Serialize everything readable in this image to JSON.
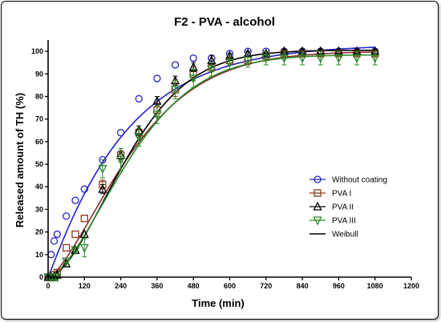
{
  "chart_data": {
    "type": "scatter",
    "title": "F2 - PVA - alcohol",
    "xlabel": "Time (min)",
    "ylabel": "Released amount of TH (%)",
    "xlim": [
      0,
      1200
    ],
    "ylim": [
      0,
      105
    ],
    "xticks": [
      0,
      120,
      240,
      360,
      480,
      600,
      720,
      840,
      960,
      1080,
      1200
    ],
    "yticks": [
      0,
      10,
      20,
      30,
      40,
      50,
      60,
      70,
      80,
      90,
      100
    ],
    "grid": false,
    "legend_position": "right",
    "series": [
      {
        "name": "Without coating",
        "marker": "circle",
        "color": "#2323c8",
        "x": [
          0,
          10,
          20,
          30,
          60,
          90,
          120,
          180,
          240,
          300,
          360,
          420,
          480,
          540,
          600,
          660,
          720,
          780,
          840,
          900,
          960,
          1020,
          1080
        ],
        "y": [
          0,
          10,
          16,
          19,
          27,
          34,
          39,
          52,
          64,
          79,
          88,
          94,
          97,
          97,
          99,
          100,
          100,
          100,
          100,
          100,
          100,
          100,
          100
        ],
        "err": [
          0,
          0,
          0,
          0,
          0,
          0,
          0,
          0,
          0,
          0,
          0,
          0,
          0,
          0,
          0,
          0,
          0,
          0,
          0,
          0,
          0,
          0,
          0
        ]
      },
      {
        "name": "PVA I",
        "marker": "square",
        "color": "#8b3a1a",
        "x": [
          0,
          10,
          20,
          30,
          60,
          90,
          120,
          180,
          240,
          300,
          360,
          420,
          480,
          540,
          600,
          660,
          720,
          780,
          840,
          900,
          960,
          1020,
          1080
        ],
        "y": [
          0,
          0,
          1,
          2,
          13,
          19,
          26,
          41,
          54,
          64,
          74,
          83,
          90,
          93,
          96,
          96,
          98,
          99,
          99,
          99,
          99,
          99,
          99
        ],
        "err": [
          0,
          0,
          0,
          0,
          0,
          0,
          0,
          2,
          3,
          2,
          3,
          3,
          3,
          2,
          2,
          2,
          2,
          1,
          1,
          1,
          1,
          1,
          1
        ]
      },
      {
        "name": "PVA II",
        "marker": "triangle-up",
        "color": "#000000",
        "x": [
          0,
          10,
          20,
          30,
          60,
          90,
          120,
          180,
          240,
          300,
          360,
          420,
          480,
          540,
          600,
          660,
          720,
          780,
          840,
          900,
          960,
          1020,
          1080
        ],
        "y": [
          0,
          0,
          0,
          1,
          6,
          12,
          19,
          39,
          54,
          65,
          78,
          87,
          93,
          96,
          98,
          99,
          99,
          100,
          100,
          100,
          100,
          100,
          100
        ],
        "err": [
          0,
          0,
          0,
          0,
          0,
          0,
          0,
          2,
          2,
          2,
          2,
          2,
          2,
          2,
          1,
          1,
          1,
          1,
          1,
          1,
          1,
          1,
          1
        ]
      },
      {
        "name": "PVA III",
        "marker": "triangle-down",
        "color": "#2a8a2a",
        "x": [
          0,
          10,
          20,
          30,
          60,
          90,
          120,
          180,
          240,
          300,
          360,
          420,
          480,
          540,
          600,
          660,
          720,
          780,
          840,
          900,
          960,
          1020,
          1080
        ],
        "y": [
          0,
          0,
          0,
          0,
          7,
          12,
          13,
          48,
          52,
          62,
          72,
          83,
          88,
          92,
          95,
          96,
          97,
          97,
          97,
          97,
          97,
          97,
          97
        ],
        "err": [
          0,
          0,
          0,
          0,
          0,
          0,
          4,
          4,
          5,
          4,
          4,
          4,
          4,
          3,
          3,
          3,
          3,
          3,
          3,
          3,
          3,
          3,
          3
        ]
      }
    ],
    "fits": [
      {
        "name": "Without coating fit",
        "color": "#2323c8",
        "a": 103,
        "tau": 260,
        "beta": 1.05,
        "lag": 0,
        "show_in_legend": false
      },
      {
        "name": "PVA I fit",
        "color": "#8b2a2a",
        "a": 100,
        "tau": 320,
        "beta": 1.45,
        "lag": 0,
        "show_in_legend": false
      },
      {
        "name": "PVA II fit",
        "color": "#000000",
        "a": 100.5,
        "tau": 310,
        "beta": 1.7,
        "lag": 0,
        "show_in_legend": false
      },
      {
        "name": "PVA III fit",
        "color": "#2a8a2a",
        "a": 98.5,
        "tau": 320,
        "beta": 1.6,
        "lag": 0,
        "show_in_legend": false
      }
    ],
    "legend_extra": {
      "name": "Weibull",
      "color": "#000000"
    }
  }
}
